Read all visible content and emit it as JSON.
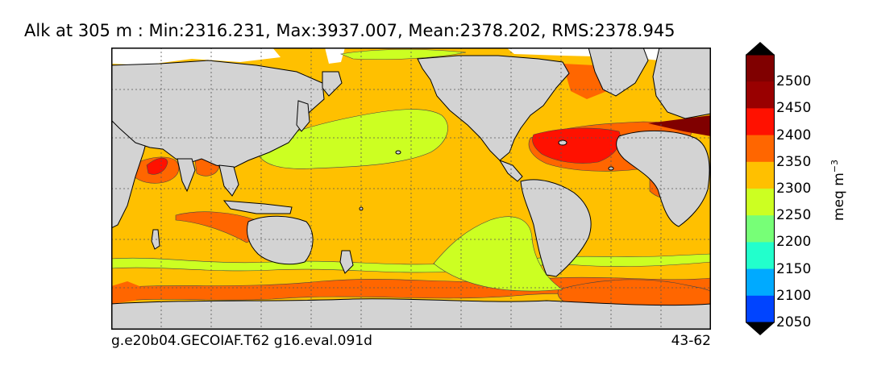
{
  "title": "Alk at 305 m : Min:2316.231, Max:3937.007, Mean:2378.202, RMS:2378.945",
  "footer": {
    "left": "g.e20b04.GECOIAF.T62 g16.eval.091d",
    "right": "43-62"
  },
  "colorbar": {
    "unit_base": "meq m",
    "unit_exponent": "−3",
    "levels": [
      {
        "value": 2050,
        "label": "2050",
        "color": "#0000cc"
      },
      {
        "value": 2100,
        "label": "2100",
        "color": "#0044ff"
      },
      {
        "value": 2150,
        "label": "2150",
        "color": "#00aaff"
      },
      {
        "value": 2200,
        "label": "2200",
        "color": "#22ffcc"
      },
      {
        "value": 2250,
        "label": "2250",
        "color": "#77ff77"
      },
      {
        "value": 2300,
        "label": "2300",
        "color": "#ccff22"
      },
      {
        "value": 2350,
        "label": "2350",
        "color": "#ffc000"
      },
      {
        "value": 2400,
        "label": "2400",
        "color": "#ff6600"
      },
      {
        "value": 2450,
        "label": "2450",
        "color": "#ff1100"
      },
      {
        "value": 2500,
        "label": "2500",
        "color": "#990000"
      }
    ],
    "under_color": "#000080",
    "over_color": "#800000"
  },
  "map": {
    "ocean_base_color": "#ffc000",
    "land_color": "#d3d3d3",
    "ice_color": "#ffffff",
    "gridlines": true
  }
}
